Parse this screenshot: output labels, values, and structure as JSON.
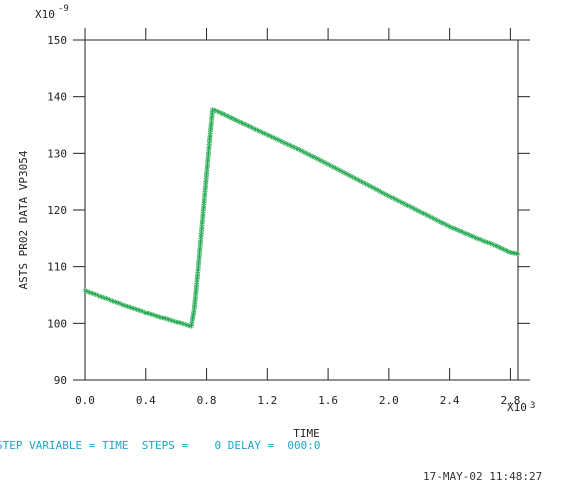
{
  "chart_data": {
    "type": "scatter",
    "title": "",
    "xlabel": "TIME",
    "ylabel": "ASTS PR02 DATA VP3054",
    "x_multiplier": "X10",
    "x_multiplier_exp": "3",
    "y_multiplier": "X10",
    "y_multiplier_exp": "-9",
    "xlim": [
      0,
      2.85
    ],
    "ylim": [
      90,
      150
    ],
    "x_ticks": [
      "0.0",
      "0.4",
      "0.8",
      "1.2",
      "1.6",
      "2.0",
      "2.4",
      "2.8"
    ],
    "y_ticks": [
      "90",
      "100",
      "110",
      "120",
      "130",
      "140",
      "150"
    ],
    "grid": false,
    "marker": "*",
    "series": [
      {
        "color": "#1aa64a",
        "points": [
          [
            0.0,
            105.5
          ],
          [
            0.1,
            104.5
          ],
          [
            0.2,
            103.5
          ],
          [
            0.3,
            102.5
          ],
          [
            0.4,
            101.6
          ],
          [
            0.5,
            100.8
          ],
          [
            0.6,
            100.0
          ],
          [
            0.7,
            99.2
          ],
          [
            0.72,
            102.5
          ],
          [
            0.74,
            108.0
          ],
          [
            0.76,
            114.0
          ],
          [
            0.78,
            120.0
          ],
          [
            0.8,
            126.0
          ],
          [
            0.82,
            132.0
          ],
          [
            0.84,
            137.5
          ],
          [
            0.9,
            136.8
          ],
          [
            1.0,
            135.5
          ],
          [
            1.2,
            133.0
          ],
          [
            1.4,
            130.5
          ],
          [
            1.6,
            127.8
          ],
          [
            1.8,
            125.0
          ],
          [
            2.0,
            122.2
          ],
          [
            2.2,
            119.5
          ],
          [
            2.4,
            116.8
          ],
          [
            2.6,
            114.5
          ],
          [
            2.7,
            113.5
          ],
          [
            2.8,
            112.2
          ],
          [
            2.85,
            112.0
          ]
        ]
      }
    ]
  },
  "footer": {
    "step_line": "STEP VARIABLE = TIME  STEPS =    0 DELAY =  000:0",
    "timestamp": "17-MAY-02 11:48:27"
  }
}
